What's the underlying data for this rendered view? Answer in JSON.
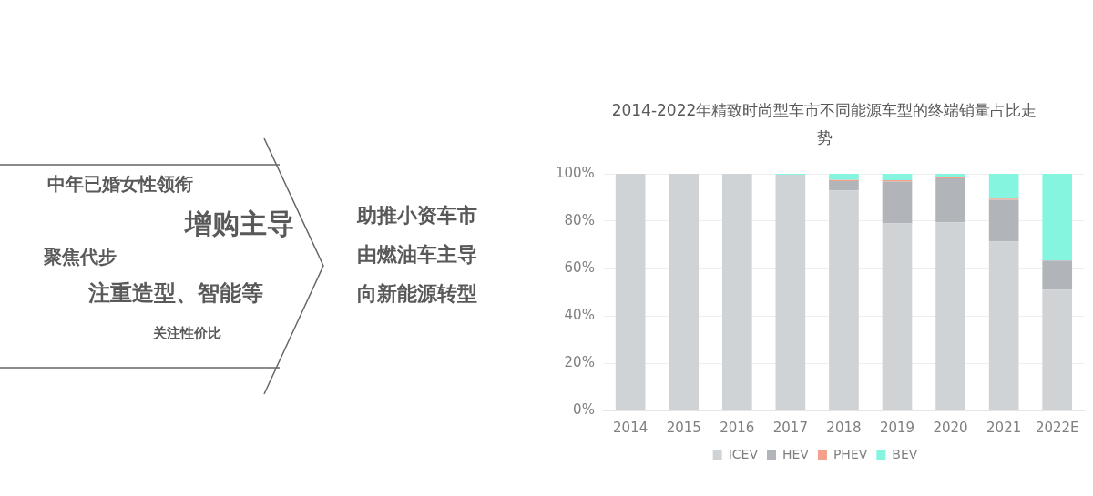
{
  "chart_data": {
    "type": "bar",
    "title": "2014-2022年精致时尚型车市不同能源车型的终端销量占比走势",
    "categories": [
      "2014",
      "2015",
      "2016",
      "2017",
      "2018",
      "2019",
      "2020",
      "2021",
      "2022E"
    ],
    "stacked": true,
    "series": [
      {
        "name": "ICEV",
        "color": "#d0d3d6",
        "values": [
          100,
          100,
          100,
          99.6,
          93,
          79,
          79.5,
          71.3,
          51
        ]
      },
      {
        "name": "HEV",
        "color": "#b1b5b9",
        "values": [
          0,
          0,
          0,
          0,
          3.9,
          17.7,
          18.6,
          17.7,
          12.4
        ]
      },
      {
        "name": "PHEV",
        "color": "#f4a08c",
        "values": [
          0,
          0,
          0,
          0,
          0.5,
          0.6,
          0.5,
          0.5,
          0
        ]
      },
      {
        "name": "BEV",
        "color": "#85f5e0",
        "values": [
          0,
          0,
          0,
          0.4,
          2.6,
          2.7,
          1.4,
          10.5,
          36.6
        ]
      }
    ],
    "ylim": [
      0,
      100
    ],
    "yticks": [
      {
        "value": 0,
        "label": "0%"
      },
      {
        "value": 20,
        "label": "20%"
      },
      {
        "value": 40,
        "label": "40%"
      },
      {
        "value": 60,
        "label": "60%"
      },
      {
        "value": 80,
        "label": "80%"
      },
      {
        "value": 100,
        "label": "100%"
      }
    ],
    "grid": "y",
    "legend": "bottom",
    "annotations": [
      "中年已婚女性领衔",
      "增购主导",
      "聚焦代步",
      "注重造型、智能等",
      "关注性价比",
      "助推小资车市",
      "由燃油车主导",
      "向新能源转型"
    ]
  }
}
